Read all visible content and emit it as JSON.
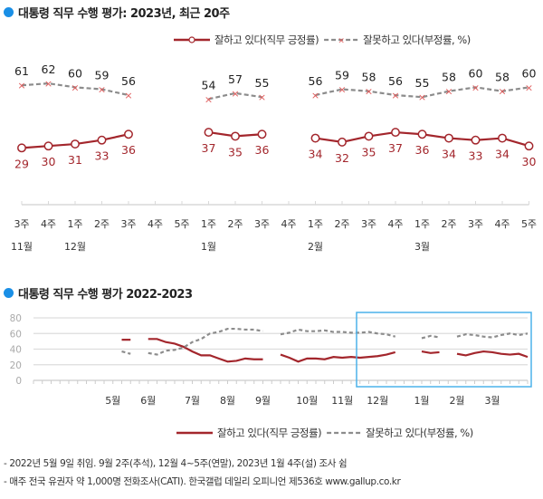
{
  "colors": {
    "approve": "#a3262c",
    "disapprove": "#8c8c8c",
    "marker_x": "#e05a5a",
    "title_dot": "#1a8fe6",
    "highlight_box": "#4cb2ea",
    "grid": "#dddddd"
  },
  "legend": {
    "approve": "잘하고 있다(직무 긍정률)",
    "disapprove": "잘못하고 있다(부정률, %)"
  },
  "chart_data": [
    {
      "type": "line",
      "title": "대통령 직무 수행 평가: 2023년, 최근 20주",
      "x_week_labels": [
        "3주",
        "4주",
        "1주",
        "2주",
        "3주",
        "4주",
        "5주",
        "1주",
        "2주",
        "3주",
        "4주",
        "1주",
        "2주",
        "3주",
        "4주",
        "1주",
        "2주",
        "3주",
        "4주",
        "5주"
      ],
      "x_month_labels": [
        {
          "index": 0,
          "label": "11월"
        },
        {
          "index": 2,
          "label": "12월"
        },
        {
          "index": 7,
          "label": "1월"
        },
        {
          "index": 11,
          "label": "2월"
        },
        {
          "index": 15,
          "label": "3월"
        }
      ],
      "series": [
        {
          "name": "잘하고 있다(직무 긍정률)",
          "key": "approve",
          "values": [
            29,
            30,
            31,
            33,
            36,
            null,
            null,
            37,
            35,
            36,
            null,
            34,
            32,
            35,
            37,
            36,
            34,
            33,
            34,
            30
          ]
        },
        {
          "name": "잘못하고 있다(부정률, %)",
          "key": "disapprove",
          "values": [
            61,
            62,
            60,
            59,
            56,
            null,
            null,
            54,
            57,
            55,
            null,
            56,
            59,
            58,
            56,
            55,
            58,
            60,
            58,
            60
          ]
        }
      ],
      "data_labels": true,
      "legend": "top-right"
    },
    {
      "type": "line",
      "title": "대통령 직무 수행 평가 2022-2023",
      "ylim": [
        0,
        80
      ],
      "y_ticks": [
        0,
        20,
        40,
        60,
        80
      ],
      "grid": true,
      "months": [
        {
          "label": "5월",
          "weeks": 4
        },
        {
          "label": "6월",
          "weeks": 5
        },
        {
          "label": "7월",
          "weeks": 4
        },
        {
          "label": "8월",
          "weeks": 4
        },
        {
          "label": "9월",
          "weeks": 5
        },
        {
          "label": "10월",
          "weeks": 4
        },
        {
          "label": "11월",
          "weeks": 4
        },
        {
          "label": "12월",
          "weeks": 5
        },
        {
          "label": "1월",
          "weeks": 4
        },
        {
          "label": "2월",
          "weeks": 4
        },
        {
          "label": "3월",
          "weeks": 5
        }
      ],
      "series": [
        {
          "name": "잘하고 있다(직무 긍정률)",
          "key": "approve",
          "values": [
            null,
            52,
            52,
            null,
            53,
            53,
            49,
            47,
            43,
            37,
            32,
            32,
            28,
            24,
            25,
            28,
            27,
            27,
            null,
            33,
            29,
            24,
            28,
            28,
            27,
            30,
            29,
            30,
            29,
            30,
            31,
            33,
            36,
            null,
            null,
            37,
            35,
            36,
            null,
            34,
            32,
            35,
            37,
            36,
            34,
            33,
            34,
            30
          ]
        },
        {
          "name": "잘못하고 있다(부정률, %)",
          "key": "disapprove",
          "values": [
            null,
            37,
            34,
            null,
            35,
            33,
            38,
            39,
            42,
            49,
            53,
            60,
            62,
            66,
            66,
            65,
            65,
            63,
            null,
            59,
            61,
            65,
            63,
            63,
            64,
            62,
            62,
            61,
            61,
            62,
            60,
            59,
            56,
            null,
            null,
            54,
            57,
            55,
            null,
            56,
            59,
            58,
            56,
            55,
            58,
            60,
            58,
            60
          ]
        }
      ],
      "highlight": "최근 20주",
      "legend": "bottom-right"
    }
  ],
  "footnotes": [
    "- 2022년 5월 9일 취임. 9월 2주(추석), 12월 4~5주(연말), 2023년 1월 4주(설) 조사 쉼",
    "- 매주 전국 유권자 약 1,000명 전화조사(CATI). 한국갤럽 데일리 오피니언 제536호 www.gallup.co.kr"
  ]
}
